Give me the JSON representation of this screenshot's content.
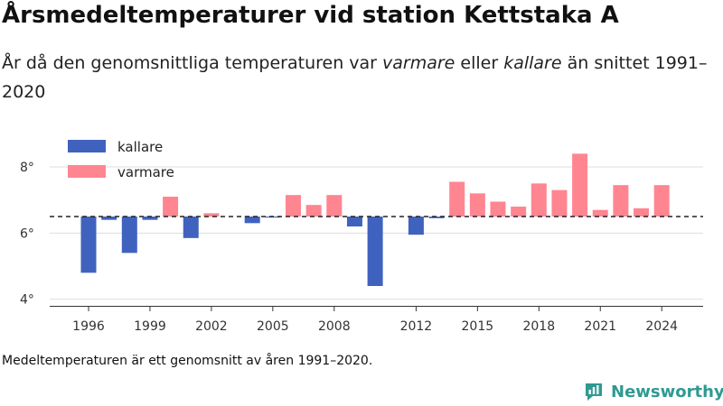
{
  "header": {
    "title": "Årsmedeltemperaturer vid station Kettstaka A",
    "subtitle_pre": "År då den genomsnittliga temperaturen var ",
    "subtitle_warm": "varmare",
    "subtitle_mid": " eller ",
    "subtitle_cold": "kallare",
    "subtitle_post": " än snittet 1991–2020"
  },
  "footer": {
    "note": "Medeltemperaturen är ett genomsnitt av åren 1991–2020.",
    "brand": "Newsworthy"
  },
  "colors": {
    "colder": "#4062bf",
    "warmer": "#ff8591",
    "baseline": "#222222",
    "grid": "#dddddd",
    "brand": "#2e9a92"
  },
  "chart_data": {
    "type": "bar",
    "baseline": 6.5,
    "ylim": [
      3.8,
      8.9
    ],
    "yticks": [
      4,
      6,
      8
    ],
    "ytick_labels": [
      "4°",
      "6°",
      "8°"
    ],
    "xticks": [
      1996,
      1999,
      2002,
      2005,
      2008,
      2012,
      2015,
      2018,
      2021,
      2024
    ],
    "legend": [
      {
        "name": "kallare",
        "color": "#4062bf"
      },
      {
        "name": "varmare",
        "color": "#ff8591"
      }
    ],
    "legend_position": "top-left",
    "grid": true,
    "series": [
      {
        "name": "kallare",
        "color": "#4062bf",
        "points": [
          {
            "x": 1996,
            "y": 4.8
          },
          {
            "x": 1997,
            "y": 6.4
          },
          {
            "x": 1998,
            "y": 5.4
          },
          {
            "x": 1999,
            "y": 6.4
          },
          {
            "x": 2001,
            "y": 5.85
          },
          {
            "x": 2004,
            "y": 6.3
          },
          {
            "x": 2005,
            "y": 6.47
          },
          {
            "x": 2009,
            "y": 6.2
          },
          {
            "x": 2010,
            "y": 4.4
          },
          {
            "x": 2012,
            "y": 5.95
          },
          {
            "x": 2013,
            "y": 6.45
          }
        ]
      },
      {
        "name": "varmare",
        "color": "#ff8591",
        "points": [
          {
            "x": 2000,
            "y": 7.1
          },
          {
            "x": 2002,
            "y": 6.6
          },
          {
            "x": 2006,
            "y": 7.15
          },
          {
            "x": 2007,
            "y": 6.85
          },
          {
            "x": 2008,
            "y": 7.15
          },
          {
            "x": 2014,
            "y": 7.55
          },
          {
            "x": 2015,
            "y": 7.2
          },
          {
            "x": 2016,
            "y": 6.95
          },
          {
            "x": 2017,
            "y": 6.8
          },
          {
            "x": 2018,
            "y": 7.5
          },
          {
            "x": 2019,
            "y": 7.3
          },
          {
            "x": 2020,
            "y": 8.4
          },
          {
            "x": 2021,
            "y": 6.7
          },
          {
            "x": 2022,
            "y": 7.45
          },
          {
            "x": 2023,
            "y": 6.75
          },
          {
            "x": 2024,
            "y": 7.45
          }
        ]
      }
    ]
  }
}
